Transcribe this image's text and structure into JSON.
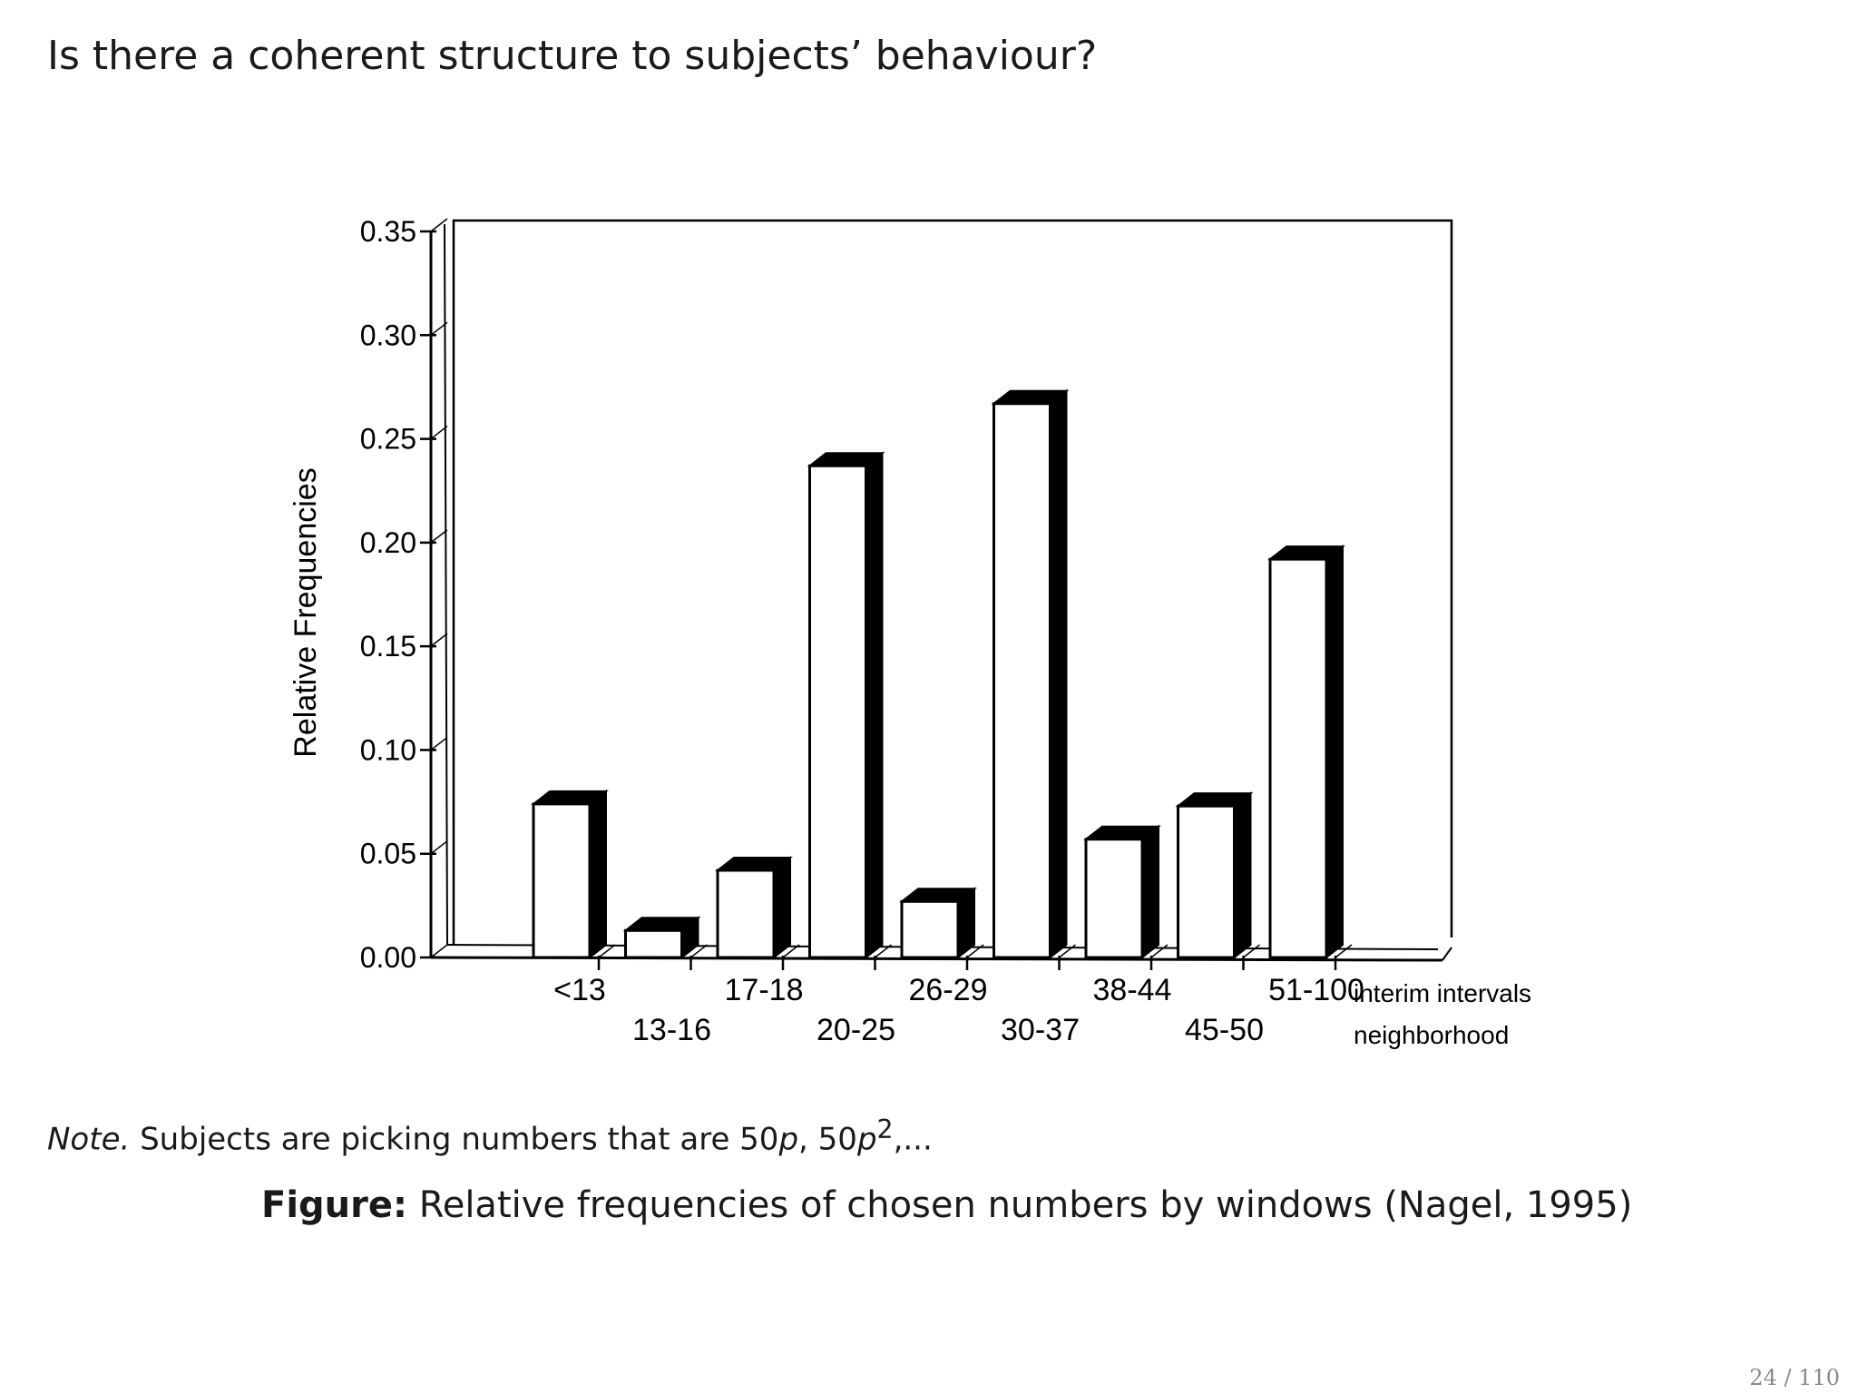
{
  "slide": {
    "title": "Is there a coherent structure to subjects’ behaviour?",
    "note": {
      "label": "Note.",
      "text_before": " Subjects are picking numbers that are 50",
      "var1": "p",
      "sep": ", 50",
      "var2": "p",
      "exp": "2",
      "text_after": ",..."
    },
    "caption": {
      "label": "Figure:",
      "text": " Relative frequencies of chosen numbers by windows (Nagel, 1995)"
    },
    "page_number": "24 / 110"
  },
  "chart_data": {
    "type": "bar",
    "ylabel": "Relative Frequencies",
    "ylim": [
      0,
      0.35
    ],
    "yticks": [
      "0.00",
      "0.05",
      "0.10",
      "0.15",
      "0.20",
      "0.25",
      "0.30",
      "0.35"
    ],
    "categories": [
      "<13",
      "13-16",
      "17-18",
      "20-25",
      "26-29",
      "30-37",
      "38-44",
      "45-50",
      "51-100"
    ],
    "category_types": [
      "interim",
      "neighborhood",
      "interim",
      "neighborhood",
      "interim",
      "neighborhood",
      "interim",
      "neighborhood",
      "interim"
    ],
    "values": [
      0.074,
      0.013,
      0.042,
      0.237,
      0.027,
      0.267,
      0.057,
      0.073,
      0.192
    ],
    "row_labels": [
      "interim intervals",
      "neighborhood"
    ],
    "bar_color": "#ffffff",
    "shadow_color": "#000000"
  }
}
